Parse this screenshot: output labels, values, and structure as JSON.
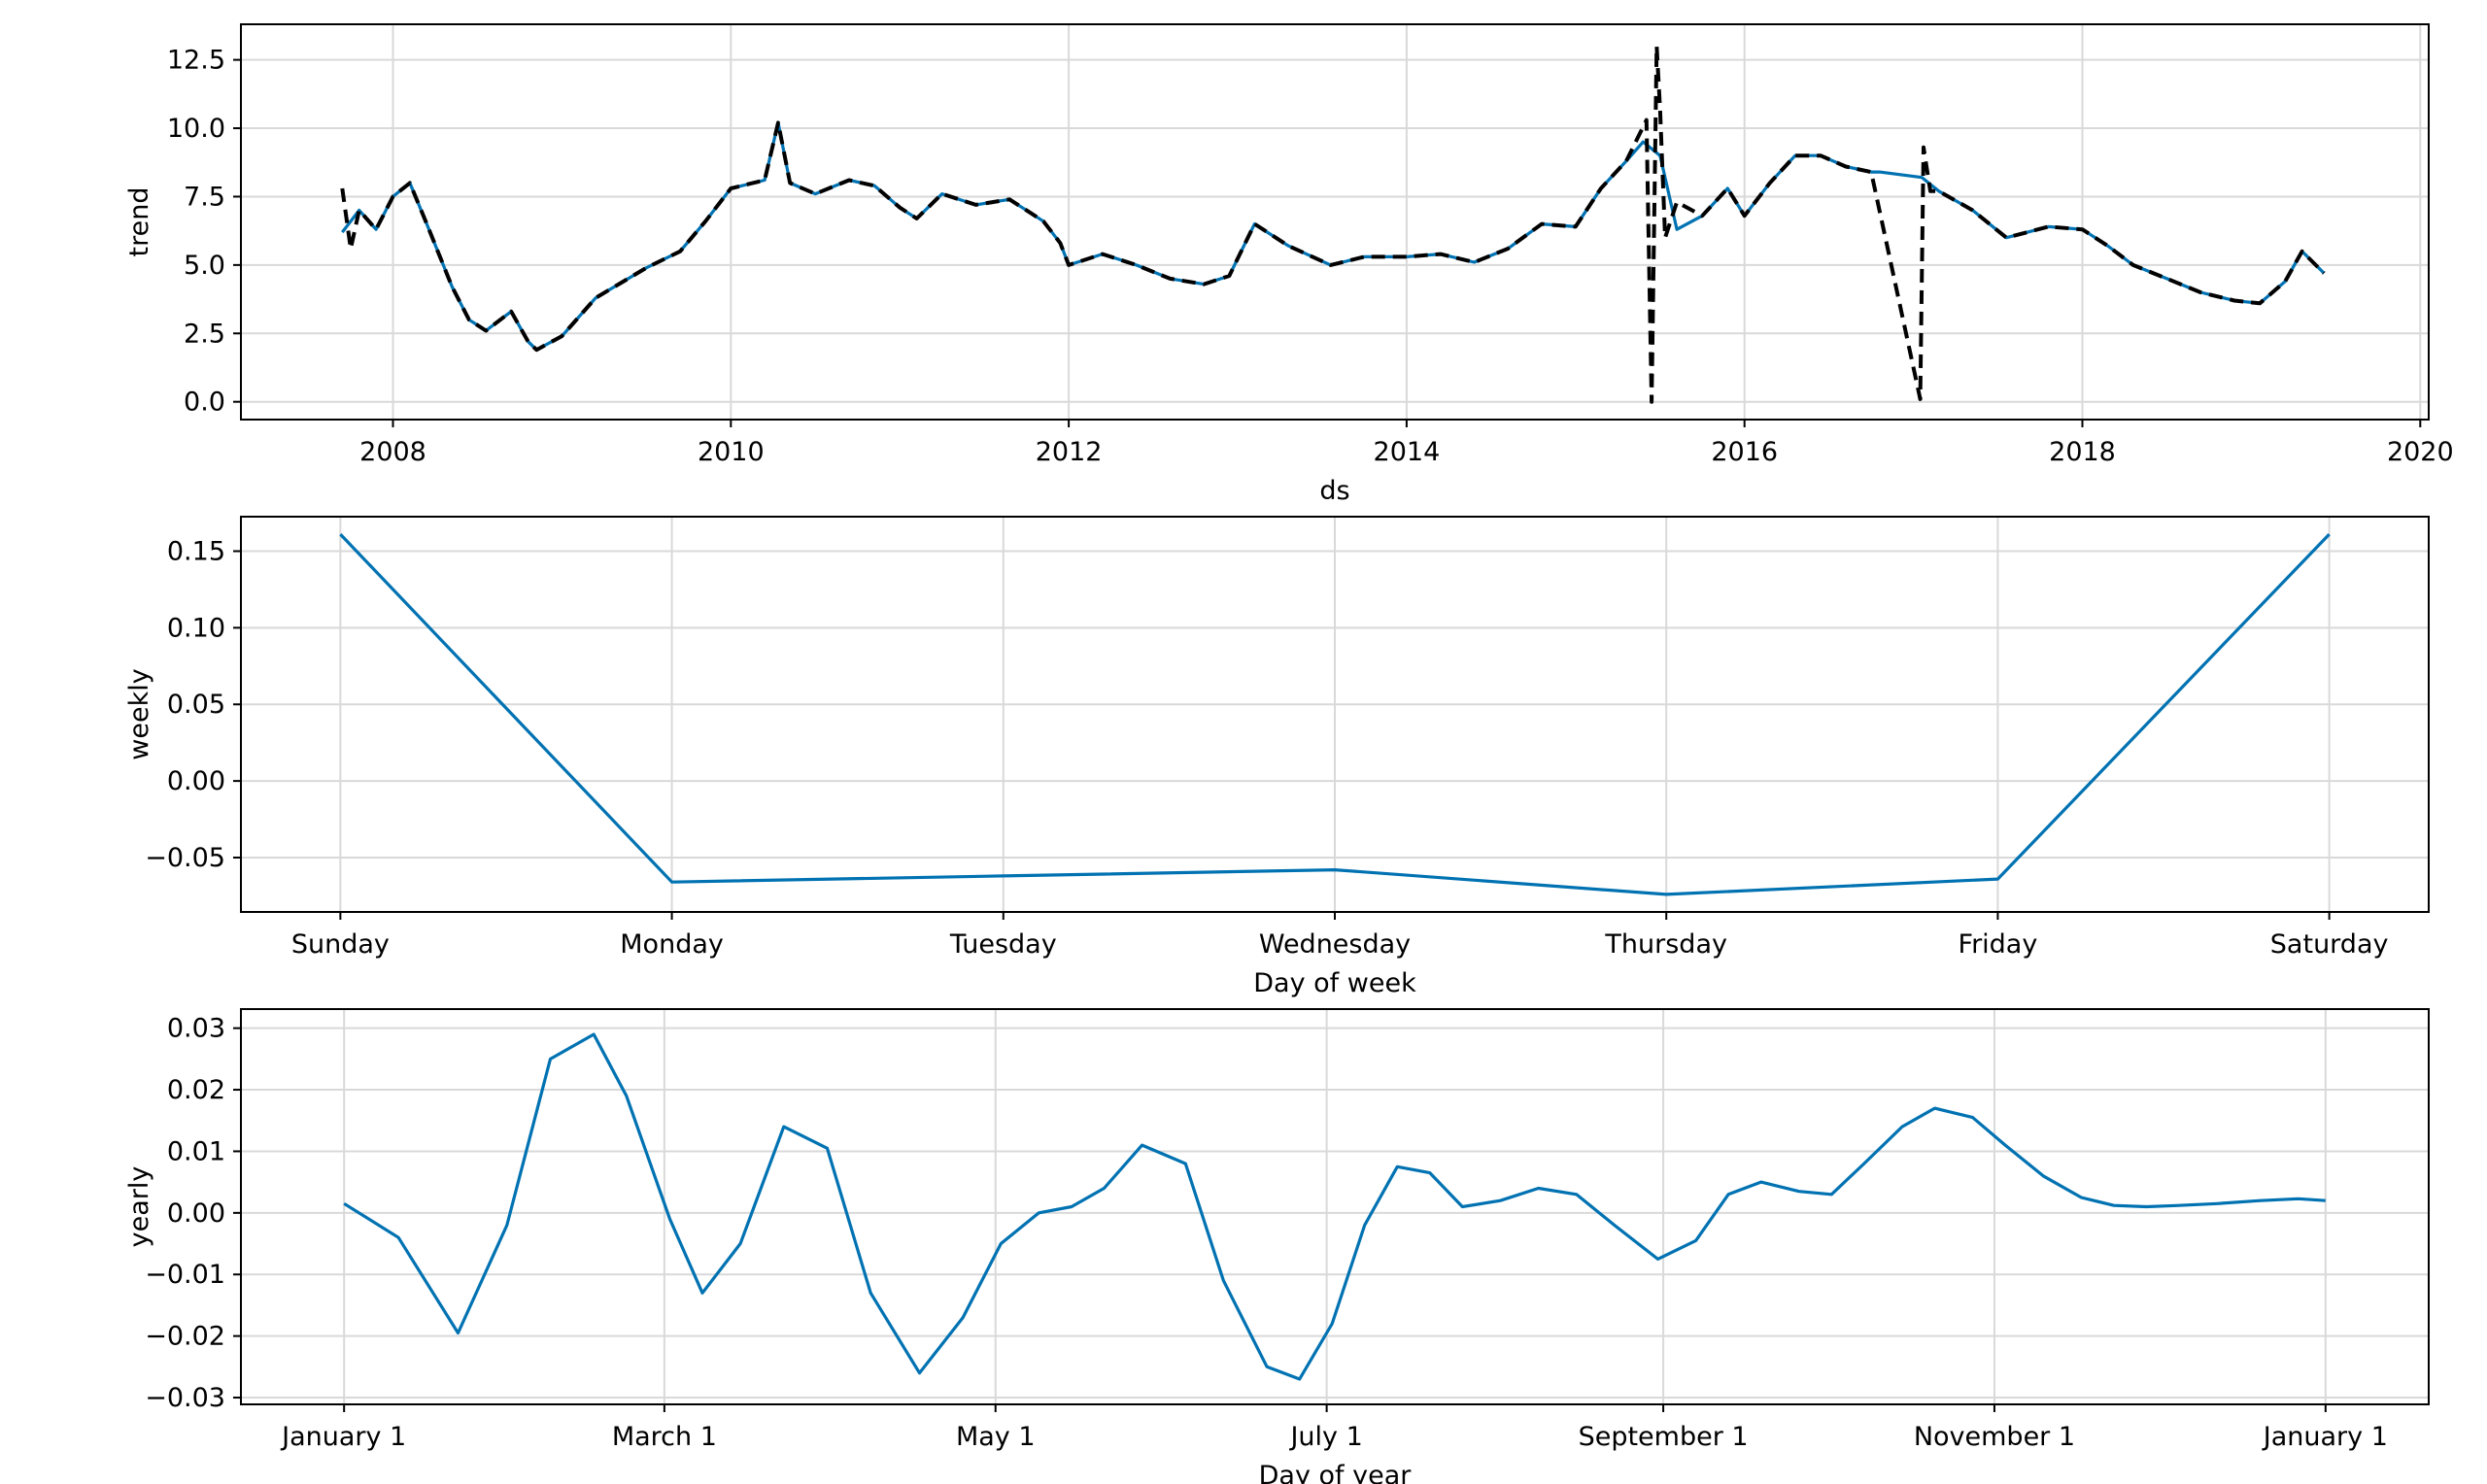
{
  "chart_data": [
    {
      "type": "line",
      "ylabel": "trend",
      "xlabel": "ds",
      "xlim": [
        2007.1,
        2020.05
      ],
      "ylim": [
        -0.65,
        13.8
      ],
      "grid": true,
      "x_ticks": [
        2008,
        2010,
        2012,
        2014,
        2016,
        2018,
        2020
      ],
      "x_tick_labels": [
        "2008",
        "2010",
        "2012",
        "2014",
        "2016",
        "2018",
        "2020"
      ],
      "y_ticks": [
        0,
        2.5,
        5,
        7.5,
        10,
        12.5
      ],
      "y_tick_labels": [
        "0.0",
        "2.5",
        "5.0",
        "7.5",
        "10.0",
        "12.5"
      ],
      "series": [
        {
          "style": "solid",
          "color": "#0072B2",
          "x": [
            2007.7,
            2007.8,
            2007.9,
            2008.0,
            2008.1,
            2008.2,
            2008.35,
            2008.45,
            2008.55,
            2008.7,
            2008.8,
            2008.85,
            2009.0,
            2009.2,
            2009.5,
            2009.7,
            2009.85,
            2010.0,
            2010.2,
            2010.28,
            2010.35,
            2010.5,
            2010.7,
            2010.85,
            2011.0,
            2011.1,
            2011.25,
            2011.45,
            2011.65,
            2011.85,
            2011.95,
            2012.0,
            2012.2,
            2012.4,
            2012.6,
            2012.8,
            2012.95,
            2013.1,
            2013.3,
            2013.55,
            2013.75,
            2014.0,
            2014.2,
            2014.4,
            2014.6,
            2014.8,
            2015.0,
            2015.15,
            2015.3,
            2015.4,
            2015.5,
            2015.6,
            2015.75,
            2015.9,
            2016.0,
            2016.15,
            2016.3,
            2016.45,
            2016.6,
            2016.75,
            2016.8,
            2017.05,
            2017.15,
            2017.35,
            2017.55,
            2017.8,
            2018.0,
            2018.15,
            2018.3,
            2018.5,
            2018.7,
            2018.9,
            2019.05,
            2019.2,
            2019.3,
            2019.43
          ],
          "y": [
            6.2,
            7.0,
            6.3,
            7.5,
            8.0,
            6.5,
            4.2,
            3.0,
            2.6,
            3.3,
            2.2,
            1.9,
            2.4,
            3.8,
            4.9,
            5.5,
            6.6,
            7.8,
            8.1,
            10.2,
            8.0,
            7.6,
            8.1,
            7.9,
            7.1,
            6.7,
            7.6,
            7.2,
            7.4,
            6.6,
            5.8,
            5.0,
            5.4,
            5.0,
            4.5,
            4.3,
            4.6,
            6.5,
            5.7,
            5.0,
            5.3,
            5.3,
            5.4,
            5.1,
            5.6,
            6.5,
            6.4,
            7.8,
            8.8,
            9.5,
            9.0,
            6.3,
            6.8,
            7.8,
            6.8,
            8.0,
            9.0,
            9.0,
            8.6,
            8.4,
            8.4,
            8.2,
            7.7,
            7.0,
            6.0,
            6.4,
            6.3,
            5.7,
            5.0,
            4.5,
            4.0,
            3.7,
            3.6,
            4.4,
            5.5,
            4.7
          ]
        },
        {
          "style": "dashed",
          "color": "#000000",
          "x": [
            2007.7,
            2007.75,
            2007.8,
            2007.9,
            2008.0,
            2008.1,
            2008.2,
            2008.35,
            2008.45,
            2008.55,
            2008.7,
            2008.8,
            2008.85,
            2009.0,
            2009.2,
            2009.5,
            2009.7,
            2009.85,
            2010.0,
            2010.2,
            2010.28,
            2010.35,
            2010.5,
            2010.7,
            2010.85,
            2011.0,
            2011.1,
            2011.25,
            2011.45,
            2011.65,
            2011.85,
            2011.95,
            2012.0,
            2012.2,
            2012.4,
            2012.6,
            2012.8,
            2012.95,
            2013.1,
            2013.3,
            2013.55,
            2013.75,
            2014.0,
            2014.2,
            2014.4,
            2014.6,
            2014.8,
            2015.0,
            2015.15,
            2015.3,
            2015.42,
            2015.45,
            2015.48,
            2015.5,
            2015.53,
            2015.6,
            2015.75,
            2015.9,
            2016.0,
            2016.15,
            2016.3,
            2016.45,
            2016.6,
            2016.75,
            2017.04,
            2017.06,
            2017.1,
            2017.15,
            2017.35,
            2017.55,
            2017.8,
            2018.0,
            2018.15,
            2018.3,
            2018.5,
            2018.7,
            2018.9,
            2019.05,
            2019.2,
            2019.3,
            2019.43
          ],
          "y": [
            7.8,
            5.6,
            7.0,
            6.3,
            7.5,
            8.0,
            6.5,
            4.2,
            3.0,
            2.6,
            3.3,
            2.2,
            1.9,
            2.4,
            3.8,
            4.9,
            5.5,
            6.6,
            7.8,
            8.1,
            10.2,
            8.0,
            7.6,
            8.1,
            7.9,
            7.1,
            6.7,
            7.6,
            7.2,
            7.4,
            6.6,
            5.8,
            5.0,
            5.4,
            5.0,
            4.5,
            4.3,
            4.6,
            6.5,
            5.7,
            5.0,
            5.3,
            5.3,
            5.4,
            5.1,
            5.6,
            6.5,
            6.4,
            7.8,
            8.8,
            10.3,
            0.0,
            13.0,
            10.7,
            6.0,
            7.3,
            6.8,
            7.8,
            6.8,
            8.0,
            9.0,
            9.0,
            8.6,
            8.4,
            0.1,
            9.3,
            7.7,
            7.7,
            7.0,
            6.0,
            6.4,
            6.3,
            5.7,
            5.0,
            4.5,
            4.0,
            3.7,
            3.6,
            4.4,
            5.5,
            4.7
          ]
        }
      ]
    },
    {
      "type": "line",
      "ylabel": "weekly",
      "xlabel": "Day of week",
      "categories": [
        "Sunday",
        "Monday",
        "Tuesday",
        "Wednesday",
        "Thursday",
        "Friday",
        "Saturday"
      ],
      "xlim": [
        -0.3,
        6.3
      ],
      "ylim": [
        -0.0855,
        0.1725
      ],
      "grid": true,
      "y_ticks": [
        -0.05,
        0,
        0.05,
        0.1,
        0.15
      ],
      "y_tick_labels": [
        "−0.05",
        "0.00",
        "0.05",
        "0.10",
        "0.15"
      ],
      "series": [
        {
          "color": "#0072B2",
          "values": [
            0.161,
            -0.066,
            -0.062,
            -0.058,
            -0.074,
            -0.064,
            0.161
          ]
        }
      ]
    },
    {
      "type": "line",
      "ylabel": "yearly",
      "xlabel": "Day of year",
      "xlim": [
        -19,
        384
      ],
      "ylim": [
        -0.0311,
        0.0331
      ],
      "grid": true,
      "x_ticks": [
        0,
        59,
        120,
        181,
        243,
        304,
        365
      ],
      "x_tick_labels": [
        "January 1",
        "March 1",
        "May 1",
        "July 1",
        "September 1",
        "November 1",
        "January 1"
      ],
      "y_ticks": [
        -0.03,
        -0.02,
        -0.01,
        0,
        0.01,
        0.02,
        0.03
      ],
      "y_tick_labels": [
        "−0.03",
        "−0.02",
        "−0.01",
        "0.00",
        "0.01",
        "0.02",
        "0.03"
      ],
      "series": [
        {
          "color": "#0072B2",
          "x": [
            0,
            10,
            21,
            30,
            38,
            46,
            52,
            60,
            66,
            73,
            81,
            89,
            97,
            106,
            114,
            121,
            128,
            134,
            140,
            147,
            155,
            162,
            170,
            176,
            182,
            188,
            194,
            200,
            206,
            213,
            220,
            227,
            234,
            242,
            249,
            255,
            261,
            268,
            274,
            280,
            287,
            293,
            300,
            306,
            313,
            320,
            326,
            332,
            338,
            345,
            353,
            360,
            365
          ],
          "y": [
            0.0015,
            -0.004,
            -0.0195,
            -0.002,
            0.025,
            0.029,
            0.019,
            -0.001,
            -0.013,
            -0.005,
            0.014,
            0.0105,
            -0.013,
            -0.026,
            -0.017,
            -0.005,
            0.0,
            0.001,
            0.004,
            0.011,
            0.008,
            -0.011,
            -0.025,
            -0.027,
            -0.018,
            -0.002,
            0.0075,
            0.0065,
            0.001,
            0.002,
            0.004,
            0.003,
            -0.002,
            -0.0075,
            -0.0045,
            0.003,
            0.005,
            0.0035,
            0.003,
            0.008,
            0.014,
            0.017,
            0.0155,
            0.011,
            0.006,
            0.0025,
            0.0012,
            0.001,
            0.0012,
            0.0015,
            0.002,
            0.0023,
            0.002
          ]
        }
      ]
    }
  ]
}
